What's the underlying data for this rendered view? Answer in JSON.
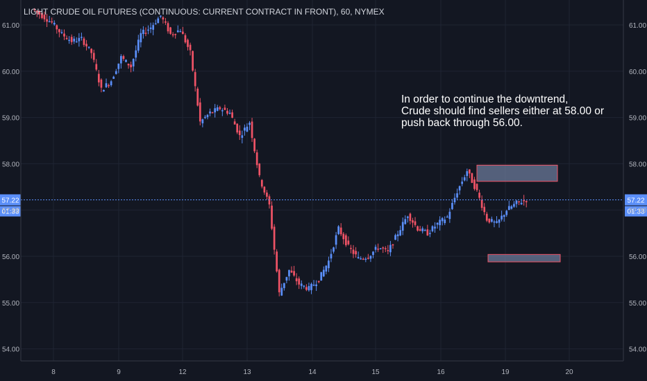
{
  "chart_data": {
    "type": "candlestick",
    "title": "LIGHT CRUDE OIL FUTURES (CONTINUOUS: CURRENT CONTRACT IN FRONT), 60, NYMEX",
    "interval": "60",
    "ylim": [
      53.6,
      61.5
    ],
    "y_ticks": [
      "54.00",
      "55.00",
      "56.00",
      "57.00",
      "58.00",
      "59.00",
      "60.00",
      "61.00"
    ],
    "x_ticks": [
      "8",
      "9",
      "12",
      "13",
      "14",
      "15",
      "16",
      "19",
      "20"
    ],
    "grid": true,
    "last_price": "57.22",
    "last_price_value": 57.22,
    "countdown": "01:33",
    "colors": {
      "up": "#5b8ff9",
      "down": "#ef5366",
      "background": "#131722",
      "grid": "#1f2433",
      "axis_text": "#b2b5be",
      "price_line": "#5b8ff9",
      "zone_fill": "#6b7a99",
      "zone_border": "#ef5366"
    },
    "zones": [
      {
        "name": "resistance-zone",
        "x_start": "18.7",
        "x_end": "19.75",
        "y_low": 57.62,
        "y_high": 57.97
      },
      {
        "name": "support-zone",
        "x_start": "18.85",
        "x_end": "19.8",
        "y_low": 55.88,
        "y_high": 56.04
      }
    ],
    "annotation": [
      "In order to continue the downtrend,",
      "Crude should find sellers either at 58.00 or",
      "push back through 56.00."
    ],
    "price_path": [
      [
        61.35,
        61.2
      ],
      [
        61.2,
        61.05
      ],
      [
        61.05,
        60.8
      ],
      [
        60.8,
        60.65
      ],
      [
        60.65,
        60.7
      ],
      [
        60.7,
        60.4
      ],
      [
        60.4,
        59.6
      ],
      [
        59.6,
        59.8
      ],
      [
        59.8,
        60.3
      ],
      [
        60.3,
        60.1
      ],
      [
        60.1,
        60.8
      ],
      [
        60.8,
        60.95
      ],
      [
        60.95,
        61.2
      ],
      [
        61.2,
        60.8
      ],
      [
        60.8,
        60.9
      ],
      [
        60.9,
        60.4
      ],
      [
        60.4,
        58.9
      ],
      [
        58.9,
        59.1
      ],
      [
        59.1,
        59.2
      ],
      [
        59.2,
        59.1
      ],
      [
        59.1,
        58.6
      ],
      [
        58.6,
        58.9
      ],
      [
        58.9,
        57.7
      ],
      [
        57.7,
        57.1
      ],
      [
        57.1,
        55.2
      ],
      [
        55.2,
        55.7
      ],
      [
        55.7,
        55.4
      ],
      [
        55.4,
        55.3
      ],
      [
        55.3,
        55.5
      ],
      [
        55.5,
        55.9
      ],
      [
        55.9,
        56.6
      ],
      [
        56.6,
        56.2
      ],
      [
        56.2,
        55.95
      ],
      [
        55.95,
        56.0
      ],
      [
        56.0,
        56.2
      ],
      [
        56.2,
        56.1
      ],
      [
        56.1,
        56.5
      ],
      [
        56.5,
        56.9
      ],
      [
        56.9,
        56.6
      ],
      [
        56.6,
        56.5
      ],
      [
        56.5,
        56.7
      ],
      [
        56.7,
        56.85
      ],
      [
        56.85,
        57.4
      ],
      [
        57.4,
        57.85
      ],
      [
        57.85,
        57.4
      ],
      [
        57.4,
        56.8
      ],
      [
        56.8,
        56.7
      ],
      [
        56.7,
        57.0
      ],
      [
        57.0,
        57.15
      ],
      [
        57.15,
        57.22
      ]
    ]
  }
}
